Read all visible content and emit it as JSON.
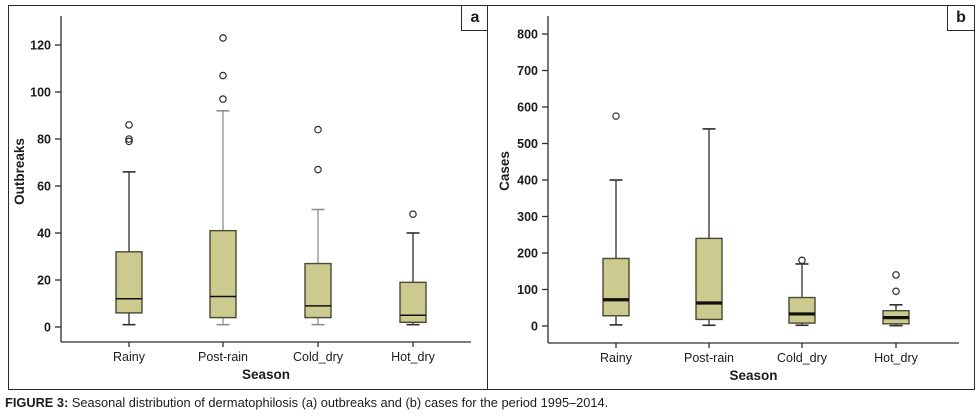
{
  "figure": {
    "caption_label": "FIGURE 3:",
    "caption_text": " Seasonal distribution of dermatophilosis (a) outbreaks and (b) cases for the period 1995–2014."
  },
  "colors": {
    "box_fill": "#cdca90",
    "box_border": "#4a4932",
    "line": "#2e2e2e",
    "gray_line": "#8f8f8f",
    "median": "#111111",
    "panel_border": "#2a2a2a"
  },
  "chart_data": [
    {
      "type": "boxplot",
      "panel_label": "a",
      "xlabel": "Season",
      "ylabel": "Outbreaks",
      "categories": [
        "Rainy",
        "Post-rain",
        "Cold_dry",
        "Hot_dry"
      ],
      "yticks": [
        0,
        20,
        40,
        60,
        80,
        100,
        120
      ],
      "ylim": [
        0,
        132
      ],
      "grid": false,
      "boxes": [
        {
          "category": "Rainy",
          "low": 1,
          "q1": 6,
          "median": 12,
          "q3": 32,
          "high": 66,
          "outliers": [
            79,
            80,
            86
          ],
          "whisker_shade": "dark"
        },
        {
          "category": "Post-rain",
          "low": 1,
          "q1": 4,
          "median": 13,
          "q3": 41,
          "high": 92,
          "outliers": [
            97,
            107,
            123
          ],
          "whisker_shade": "gray"
        },
        {
          "category": "Cold_dry",
          "low": 1,
          "q1": 4,
          "median": 9,
          "q3": 27,
          "high": 50,
          "outliers": [
            67,
            84
          ],
          "whisker_shade": "gray"
        },
        {
          "category": "Hot_dry",
          "low": 1,
          "q1": 2,
          "median": 5,
          "q3": 19,
          "high": 40,
          "outliers": [
            48
          ],
          "whisker_shade": "dark"
        }
      ]
    },
    {
      "type": "boxplot",
      "panel_label": "b",
      "xlabel": "Season",
      "ylabel": "Cases",
      "categories": [
        "Rainy",
        "Post-rain",
        "Cold_dry",
        "Hot_dry"
      ],
      "yticks": [
        0,
        100,
        200,
        300,
        400,
        500,
        600,
        700,
        800
      ],
      "ylim": [
        0,
        849
      ],
      "grid": false,
      "boxes": [
        {
          "category": "Rainy",
          "low": 3,
          "q1": 28,
          "median": 72,
          "q3": 185,
          "high": 400,
          "outliers": [
            575
          ],
          "whisker_shade": "dark"
        },
        {
          "category": "Post-rain",
          "low": 2,
          "q1": 18,
          "median": 63,
          "q3": 240,
          "high": 540,
          "outliers": [],
          "whisker_shade": "dark"
        },
        {
          "category": "Cold_dry",
          "low": 2,
          "q1": 8,
          "median": 33,
          "q3": 78,
          "high": 170,
          "outliers": [
            180
          ],
          "whisker_shade": "dark"
        },
        {
          "category": "Hot_dry",
          "low": 1,
          "q1": 6,
          "median": 23,
          "q3": 42,
          "high": 58,
          "outliers": [
            95,
            140
          ],
          "whisker_shade": "dark"
        }
      ]
    }
  ]
}
